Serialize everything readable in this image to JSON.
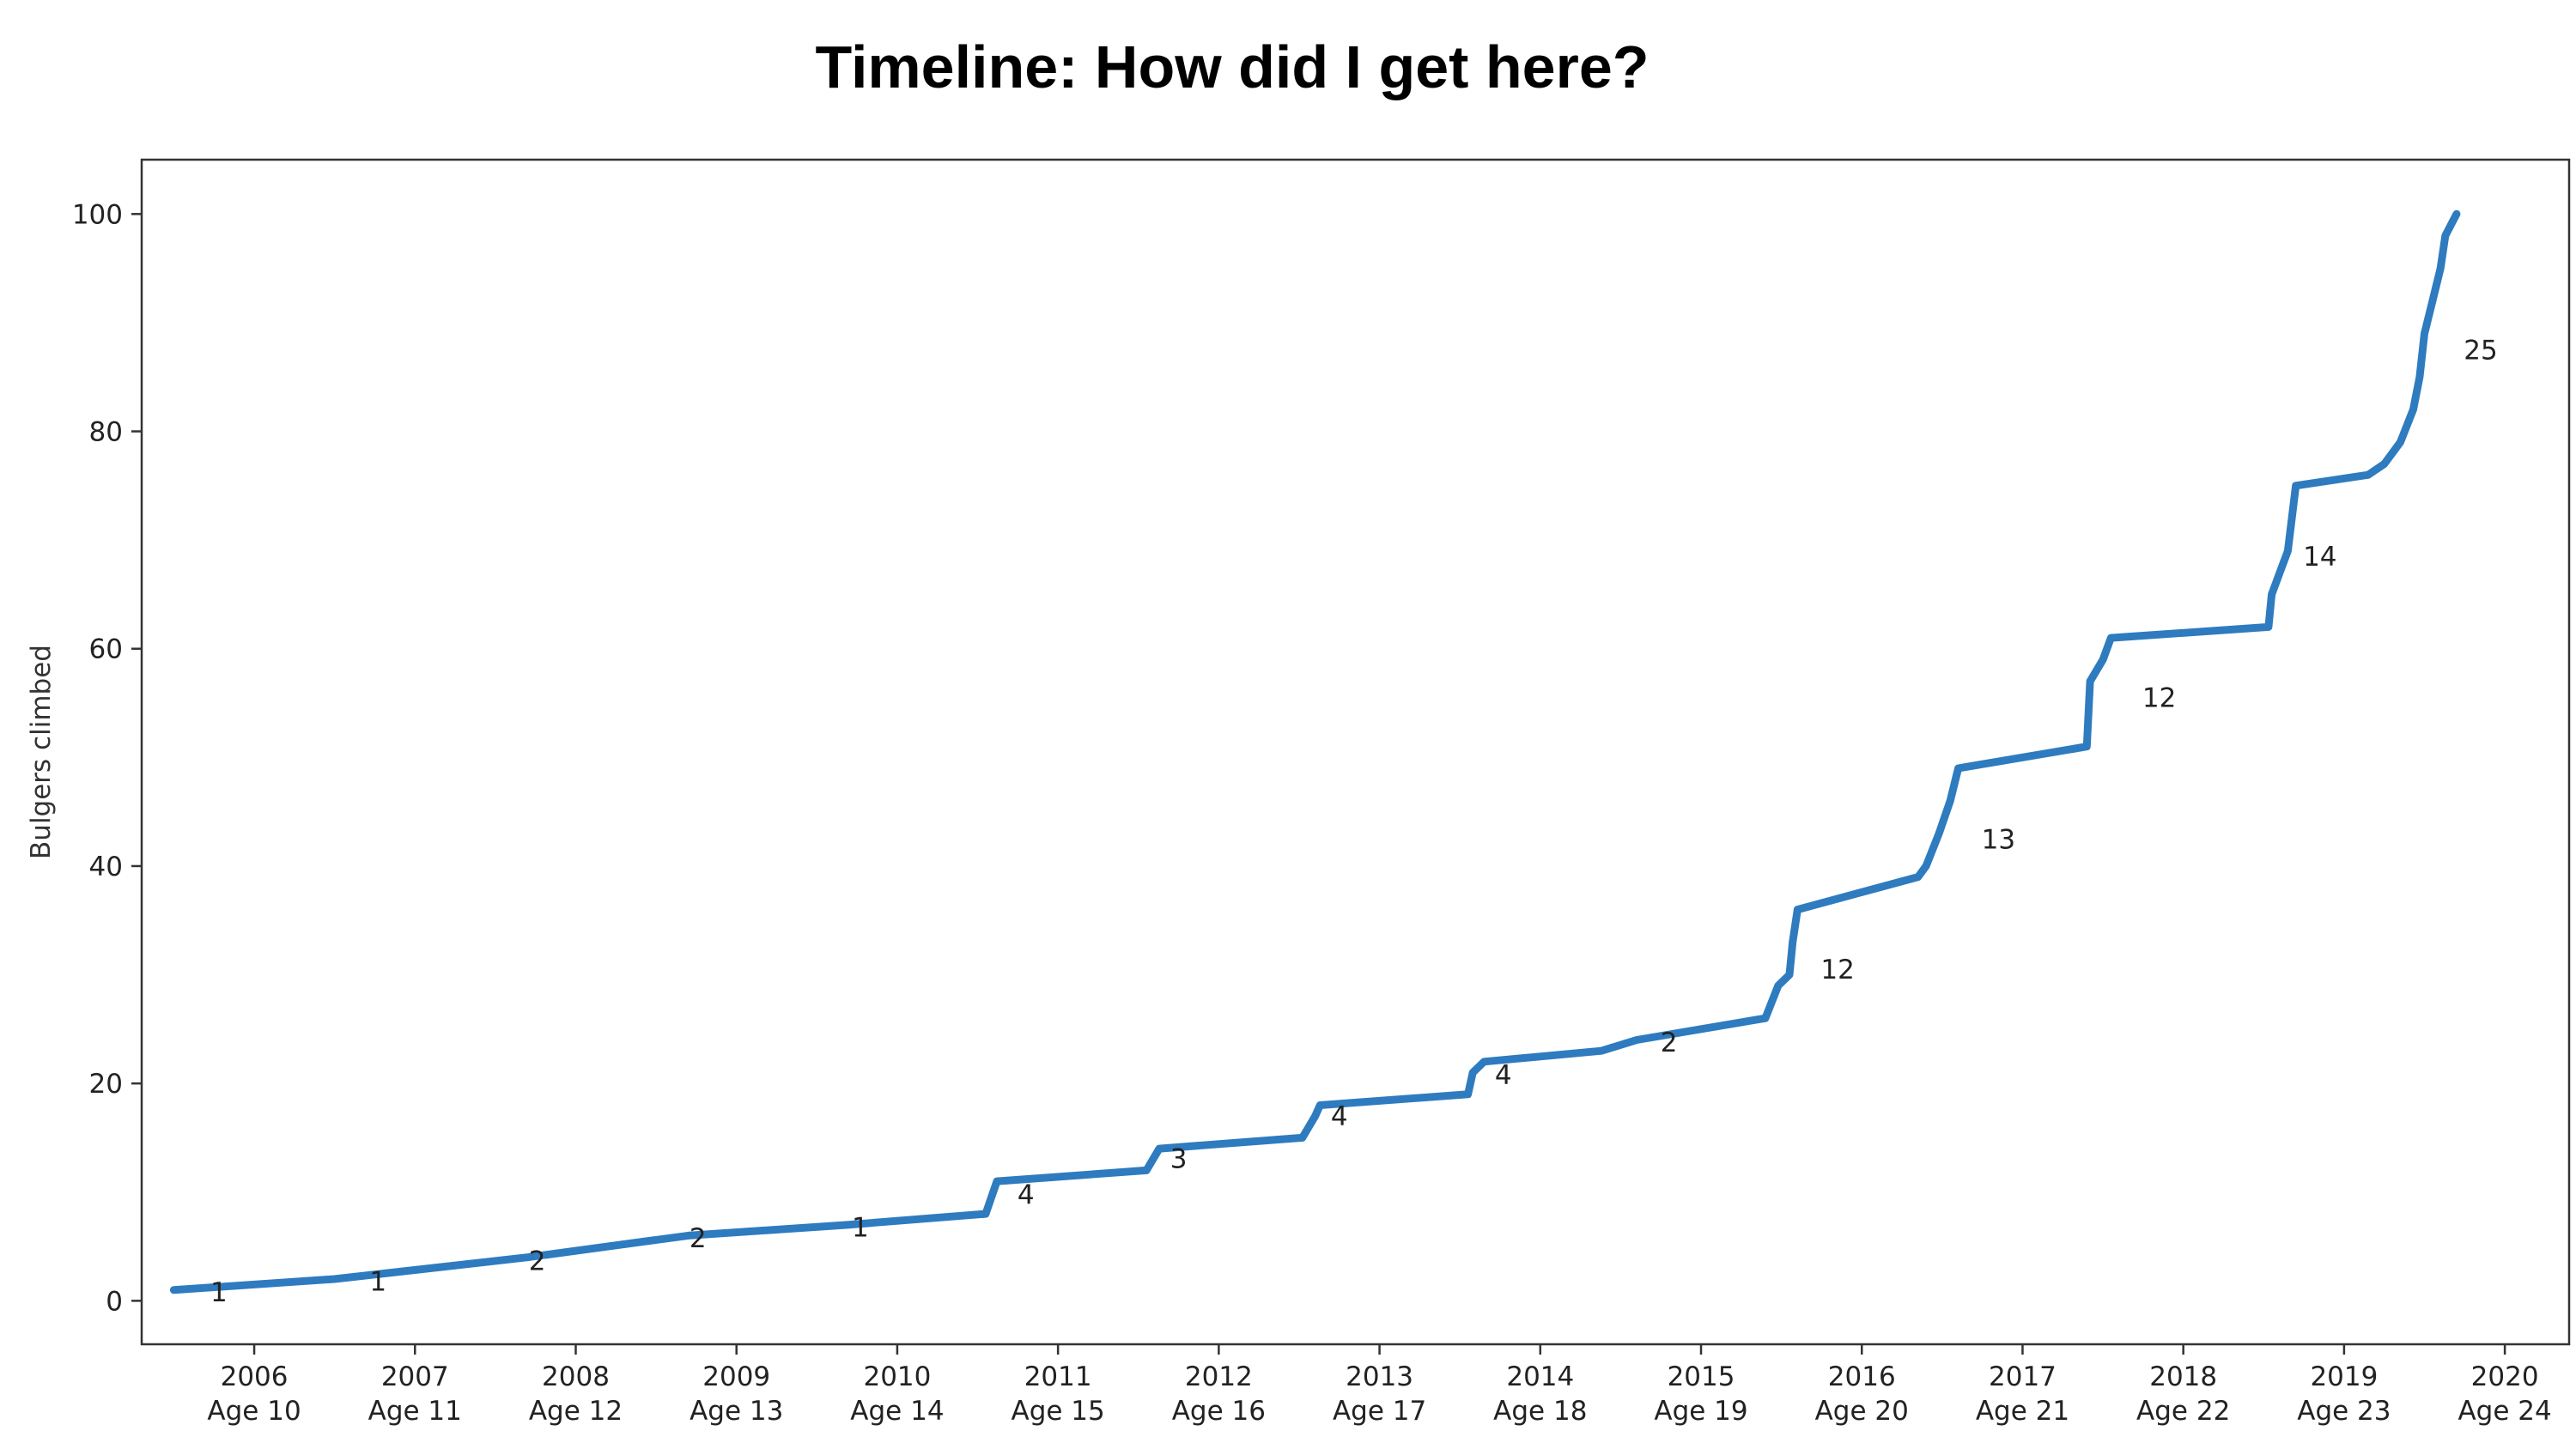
{
  "title": "Timeline: How did I get here?",
  "chart_data": {
    "type": "line",
    "title": "Timeline: How did I get here?",
    "xlabel": "",
    "ylabel": "Bulgers climbed",
    "xlim": [
      2005.3,
      2020.4
    ],
    "ylim": [
      -4,
      105
    ],
    "yticks": [
      0,
      20,
      40,
      60,
      80,
      100
    ],
    "xticks": [
      {
        "x": 2006,
        "year": "2006",
        "age": "Age 10"
      },
      {
        "x": 2007,
        "year": "2007",
        "age": "Age 11"
      },
      {
        "x": 2008,
        "year": "2008",
        "age": "Age 12"
      },
      {
        "x": 2009,
        "year": "2009",
        "age": "Age 13"
      },
      {
        "x": 2010,
        "year": "2010",
        "age": "Age 14"
      },
      {
        "x": 2011,
        "year": "2011",
        "age": "Age 15"
      },
      {
        "x": 2012,
        "year": "2012",
        "age": "Age 16"
      },
      {
        "x": 2013,
        "year": "2013",
        "age": "Age 17"
      },
      {
        "x": 2014,
        "year": "2014",
        "age": "Age 18"
      },
      {
        "x": 2015,
        "year": "2015",
        "age": "Age 19"
      },
      {
        "x": 2016,
        "year": "2016",
        "age": "Age 20"
      },
      {
        "x": 2017,
        "year": "2017",
        "age": "Age 21"
      },
      {
        "x": 2018,
        "year": "2018",
        "age": "Age 22"
      },
      {
        "x": 2019,
        "year": "2019",
        "age": "Age 23"
      },
      {
        "x": 2020,
        "year": "2020",
        "age": "Age 24"
      }
    ],
    "grid": false,
    "line_color": "#2e7bbf",
    "series": [
      {
        "x": [
          2005.5,
          2006.5,
          2007.7,
          2008.7,
          2009.7,
          2010.55,
          2010.62,
          2011.55,
          2011.63,
          2012.52,
          2012.6,
          2012.63,
          2013.55,
          2013.58,
          2013.65,
          2014.38,
          2014.6,
          2015.4,
          2015.48,
          2015.55,
          2015.57,
          2015.6,
          2016.35,
          2016.4,
          2016.48,
          2016.55,
          2016.6,
          2017.4,
          2017.42,
          2017.5,
          2017.55,
          2018.53,
          2018.55,
          2018.6,
          2018.65,
          2018.7,
          2019.15,
          2019.25,
          2019.3,
          2019.35,
          2019.43,
          2019.47,
          2019.5,
          2019.55,
          2019.6,
          2019.63,
          2019.7
        ],
        "y": [
          1,
          2,
          4,
          6,
          7,
          8,
          11,
          12,
          14,
          15,
          17,
          18,
          19,
          21,
          22,
          23,
          24,
          26,
          29,
          30,
          33,
          36,
          39,
          40,
          43,
          46,
          49,
          51,
          57,
          59,
          61,
          62,
          65,
          67,
          69,
          75,
          76,
          77,
          78,
          79,
          82,
          85,
          89,
          92,
          95,
          98,
          100
        ]
      }
    ],
    "annotations": [
      {
        "x": 2005.78,
        "y": 0.8,
        "text": "1"
      },
      {
        "x": 2006.77,
        "y": 1.8,
        "text": "1"
      },
      {
        "x": 2007.76,
        "y": 3.7,
        "text": "2"
      },
      {
        "x": 2008.76,
        "y": 5.8,
        "text": "2"
      },
      {
        "x": 2009.77,
        "y": 6.8,
        "text": "1"
      },
      {
        "x": 2010.8,
        "y": 9.8,
        "text": "4"
      },
      {
        "x": 2011.75,
        "y": 13.1,
        "text": "3"
      },
      {
        "x": 2012.75,
        "y": 17.0,
        "text": "4"
      },
      {
        "x": 2013.77,
        "y": 20.8,
        "text": "4"
      },
      {
        "x": 2014.8,
        "y": 23.8,
        "text": "2"
      },
      {
        "x": 2015.85,
        "y": 30.5,
        "text": "12"
      },
      {
        "x": 2016.85,
        "y": 42.5,
        "text": "13"
      },
      {
        "x": 2017.85,
        "y": 55.5,
        "text": "12"
      },
      {
        "x": 2018.85,
        "y": 68.5,
        "text": "14"
      },
      {
        "x": 2019.85,
        "y": 87.5,
        "text": "25"
      }
    ]
  }
}
